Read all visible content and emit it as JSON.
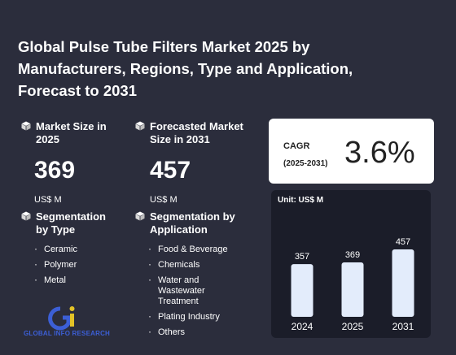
{
  "title": "Global Pulse Tube Filters Market 2025 by Manufacturers, Regions, Type and Application, Forecast to 2031",
  "market_size": {
    "label": "Market Size in 2025",
    "value": "369",
    "unit": "US$ M"
  },
  "forecast_size": {
    "label": "Forecasted Market Size in 2031",
    "value": "457",
    "unit": "US$ M"
  },
  "segmentation_type": {
    "title": "Segmentation by Type",
    "items": [
      "Ceramic",
      "Polymer",
      "Metal"
    ]
  },
  "segmentation_application": {
    "title": "Segmentation by Application",
    "items": [
      "Food & Beverage",
      "Chemicals",
      "Water and Wastewater Treatment",
      "Plating Industry",
      "Others"
    ]
  },
  "cagr": {
    "label": "CAGR",
    "period": "(2025-2031)",
    "value": "3.6%"
  },
  "logo": {
    "text": "GLOBAL INFO RESEARCH"
  },
  "colors": {
    "background": "#2b2d3c",
    "bar": "#e3ecfb",
    "logo": "#3c5fd6"
  },
  "chart_data": {
    "type": "bar",
    "unit_label": "Unit: US$ M",
    "categories": [
      "2024",
      "2025",
      "2031"
    ],
    "values": [
      357,
      369,
      457
    ],
    "ylim": [
      0,
      500
    ]
  }
}
